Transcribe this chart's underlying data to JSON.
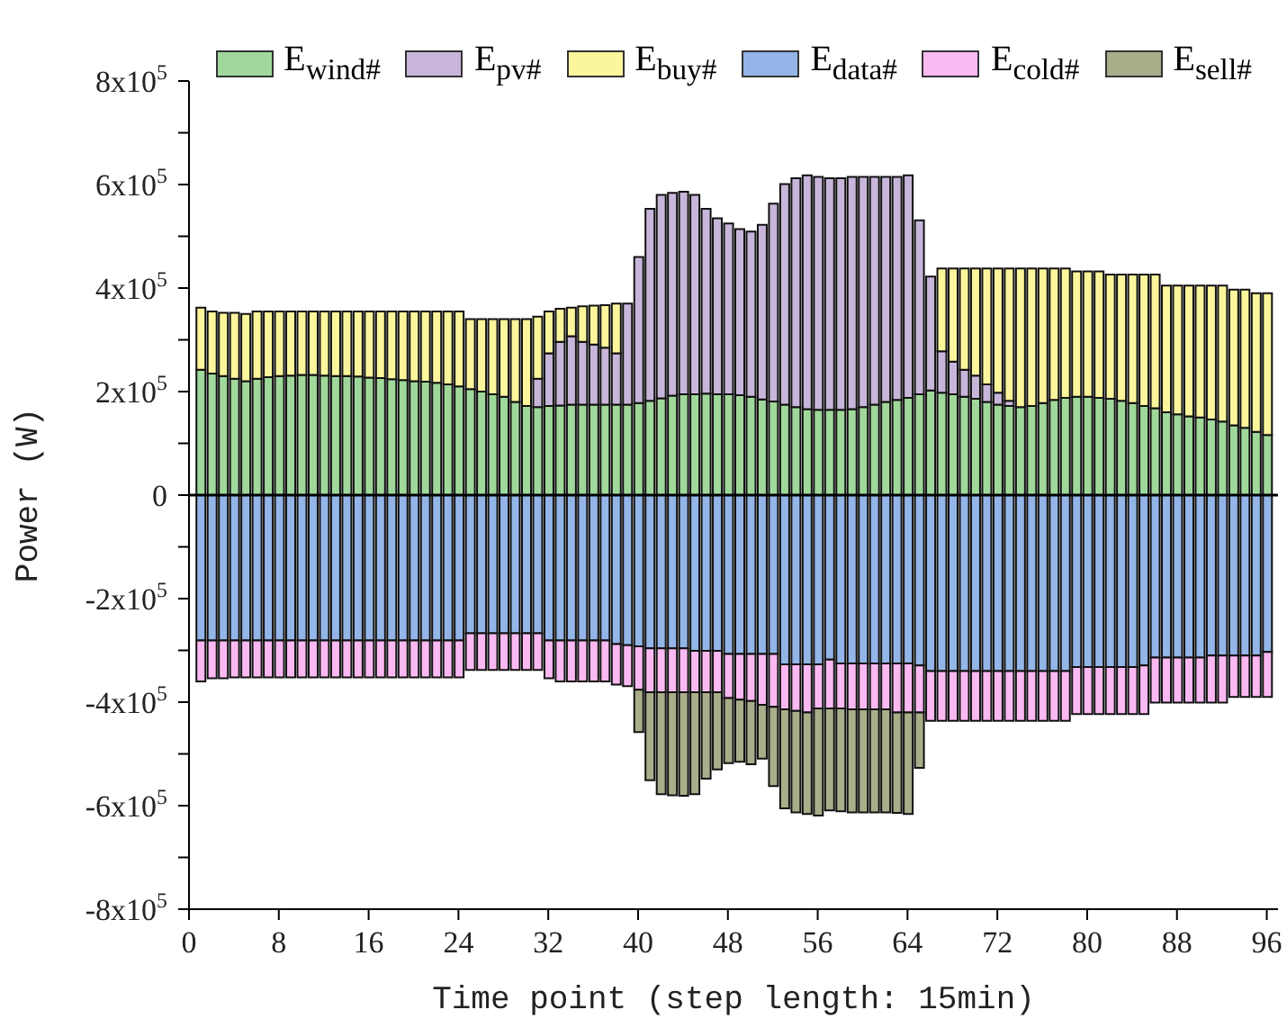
{
  "chart_data": {
    "type": "bar",
    "stacked": true,
    "xlabel": "Time point (step length: 15min)",
    "ylabel": "Power (W)",
    "x": [
      1,
      2,
      3,
      4,
      5,
      6,
      7,
      8,
      9,
      10,
      11,
      12,
      13,
      14,
      15,
      16,
      17,
      18,
      19,
      20,
      21,
      22,
      23,
      24,
      25,
      26,
      27,
      28,
      29,
      30,
      31,
      32,
      33,
      34,
      35,
      36,
      37,
      38,
      39,
      40,
      41,
      42,
      43,
      44,
      45,
      46,
      47,
      48,
      49,
      50,
      51,
      52,
      53,
      54,
      55,
      56,
      57,
      58,
      59,
      60,
      61,
      62,
      63,
      64,
      65,
      66,
      67,
      68,
      69,
      70,
      71,
      72,
      73,
      74,
      75,
      76,
      77,
      78,
      79,
      80,
      81,
      82,
      83,
      84,
      85,
      86,
      87,
      88,
      89,
      90,
      91,
      92,
      93,
      94,
      95,
      96
    ],
    "xlim": [
      0,
      97
    ],
    "xticks": [
      0,
      8,
      16,
      24,
      32,
      40,
      48,
      56,
      64,
      72,
      80,
      88,
      96
    ],
    "ylim": [
      -800000,
      800000
    ],
    "yticks": [
      {
        "value": -800000,
        "label": "-8x10$^{5}$"
      },
      {
        "value": -700000,
        "label": null
      },
      {
        "value": -600000,
        "label": "-6x10$^{5}$"
      },
      {
        "value": -500000,
        "label": null
      },
      {
        "value": -400000,
        "label": "-4x10$^{5}$"
      },
      {
        "value": -300000,
        "label": null
      },
      {
        "value": -200000,
        "label": "-2x10$^{5}$"
      },
      {
        "value": -100000,
        "label": null
      },
      0,
      {
        "value": 100000,
        "label": null
      },
      {
        "value": 200000,
        "label": "2x10$^{5}$"
      },
      {
        "value": 300000,
        "label": null
      },
      {
        "value": 400000,
        "label": "4x10$^{5}$"
      },
      {
        "value": 500000,
        "label": null
      },
      {
        "value": 600000,
        "label": "6x10$^{5}$"
      },
      {
        "value": 700000,
        "label": null
      },
      {
        "value": 800000,
        "label": "8x10$^{5}$"
      }
    ],
    "legend": "top",
    "ref_lines": [
      {
        "axis": "y",
        "value": 0,
        "color": "#000000"
      }
    ],
    "series": [
      {
        "name": "E$_{wind#}$",
        "color": "#a0d89b",
        "values": [
          242000,
          235000,
          230000,
          225000,
          220000,
          225000,
          228000,
          230000,
          231000,
          232000,
          232000,
          231000,
          230000,
          230000,
          229000,
          227000,
          226000,
          224000,
          222000,
          220000,
          219000,
          217000,
          214000,
          210000,
          205000,
          200000,
          195000,
          190000,
          180000,
          172000,
          170000,
          172000,
          173000,
          175000,
          175000,
          175000,
          175000,
          175000,
          175000,
          178000,
          182000,
          187000,
          192000,
          195000,
          195000,
          196000,
          195000,
          195000,
          193000,
          190000,
          185000,
          181000,
          175000,
          170000,
          166000,
          165000,
          165000,
          165000,
          166000,
          170000,
          175000,
          180000,
          184000,
          188000,
          195000,
          202000,
          198000,
          195000,
          190000,
          186000,
          180000,
          175000,
          172000,
          170000,
          172000,
          178000,
          184000,
          188000,
          190000,
          190000,
          188000,
          186000,
          182000,
          178000,
          172000,
          168000,
          160000,
          156000,
          152000,
          150000,
          146000,
          142000,
          135000,
          130000,
          122000,
          116000
        ]
      },
      {
        "name": "E$_{pv#}$",
        "color": "#c8b6da",
        "values": [
          null,
          null,
          null,
          null,
          null,
          null,
          null,
          null,
          null,
          null,
          null,
          null,
          null,
          null,
          null,
          null,
          null,
          null,
          null,
          null,
          null,
          null,
          null,
          null,
          null,
          null,
          null,
          null,
          null,
          null,
          55000,
          102000,
          123000,
          132000,
          121000,
          116000,
          110000,
          99000,
          195000,
          282000,
          371000,
          393000,
          392000,
          391000,
          385000,
          357000,
          340000,
          330000,
          321000,
          319000,
          337000,
          382000,
          426000,
          442000,
          452000,
          450000,
          447000,
          447000,
          449000,
          445000,
          440000,
          435000,
          431000,
          430000,
          336000,
          220000,
          80000,
          63000,
          52000,
          45000,
          34000,
          23000,
          10000,
          null,
          null,
          null,
          null,
          null,
          null,
          null,
          null,
          null,
          null,
          null,
          null,
          null,
          null,
          null,
          null,
          null,
          null,
          null,
          null,
          null,
          null,
          null
        ]
      },
      {
        "name": "E$_{buy#}$",
        "color": "#fbf59c",
        "values": [
          120000,
          120000,
          122000,
          127000,
          130000,
          130000,
          127000,
          125000,
          124000,
          123000,
          123000,
          124000,
          125000,
          125000,
          126000,
          128000,
          129000,
          131000,
          133000,
          135000,
          136000,
          138000,
          141000,
          145000,
          135000,
          140000,
          145000,
          150000,
          160000,
          168000,
          120000,
          81000,
          64000,
          55000,
          69000,
          75000,
          82000,
          96000,
          null,
          null,
          null,
          null,
          null,
          null,
          null,
          null,
          null,
          null,
          null,
          null,
          null,
          null,
          null,
          null,
          null,
          null,
          null,
          null,
          null,
          null,
          null,
          null,
          null,
          null,
          null,
          null,
          160000,
          180000,
          196000,
          207000,
          224000,
          240000,
          256000,
          268000,
          266000,
          260000,
          254000,
          250000,
          242000,
          242000,
          244000,
          240000,
          244000,
          248000,
          254000,
          258000,
          245000,
          249000,
          253000,
          255000,
          259000,
          263000,
          262000,
          267000,
          268000,
          274000
        ]
      },
      {
        "name": "E$_{data#}$",
        "color": "#93b5e8",
        "values": [
          -281000,
          -281000,
          -281000,
          -281000,
          -281000,
          -281000,
          -281000,
          -281000,
          -281000,
          -281000,
          -281000,
          -281000,
          -281000,
          -281000,
          -281000,
          -281000,
          -281000,
          -281000,
          -281000,
          -281000,
          -281000,
          -281000,
          -281000,
          -281000,
          -267000,
          -267000,
          -267000,
          -267000,
          -267000,
          -267000,
          -267000,
          -281000,
          -281000,
          -281000,
          -281000,
          -281000,
          -281000,
          -288000,
          -290000,
          -292000,
          -296000,
          -296000,
          -296000,
          -296000,
          -301000,
          -301000,
          -301000,
          -307000,
          -307000,
          -307000,
          -307000,
          -307000,
          -327000,
          -327000,
          -327000,
          -327000,
          -318000,
          -325000,
          -325000,
          -325000,
          -325000,
          -325000,
          -325000,
          -325000,
          -329000,
          -340000,
          -340000,
          -340000,
          -340000,
          -340000,
          -340000,
          -340000,
          -340000,
          -340000,
          -340000,
          -340000,
          -340000,
          -340000,
          -332000,
          -332000,
          -332000,
          -332000,
          -332000,
          -332000,
          -329000,
          -314000,
          -314000,
          -314000,
          -314000,
          -314000,
          -310000,
          -310000,
          -310000,
          -310000,
          -310000,
          -303000
        ]
      },
      {
        "name": "E$_{cold#}$",
        "color": "#fbb9f2",
        "values": [
          -79000,
          -73000,
          -73000,
          -71000,
          -71000,
          -71000,
          -71000,
          -71000,
          -71000,
          -71000,
          -71000,
          -71000,
          -71000,
          -71000,
          -71000,
          -71000,
          -71000,
          -71000,
          -71000,
          -71000,
          -71000,
          -71000,
          -71000,
          -71000,
          -71000,
          -71000,
          -71000,
          -71000,
          -71000,
          -71000,
          -71000,
          -73000,
          -79000,
          -79000,
          -79000,
          -79000,
          -79000,
          -78000,
          -79000,
          -84000,
          -85000,
          -85000,
          -85000,
          -85000,
          -80000,
          -80000,
          -80000,
          -85000,
          -88000,
          -91000,
          -98000,
          -102000,
          -87000,
          -90000,
          -93000,
          -85000,
          -94000,
          -87000,
          -89000,
          -89000,
          -89000,
          -89000,
          -95000,
          -95000,
          -91000,
          -96000,
          -96000,
          -96000,
          -96000,
          -96000,
          -96000,
          -96000,
          -96000,
          -96000,
          -96000,
          -96000,
          -96000,
          -96000,
          -91000,
          -91000,
          -91000,
          -91000,
          -91000,
          -91000,
          -94000,
          -87000,
          -87000,
          -87000,
          -87000,
          -87000,
          -91000,
          -91000,
          -80000,
          -80000,
          -80000,
          -87000
        ]
      },
      {
        "name": "E$_{sell#}$",
        "color": "#a9ad8a",
        "values": [
          null,
          null,
          null,
          null,
          null,
          null,
          null,
          null,
          null,
          null,
          null,
          null,
          null,
          null,
          null,
          null,
          null,
          null,
          null,
          null,
          null,
          null,
          null,
          null,
          null,
          null,
          null,
          null,
          null,
          null,
          null,
          null,
          null,
          null,
          null,
          null,
          null,
          null,
          null,
          -82000,
          -170000,
          -197000,
          -199000,
          -200000,
          -197000,
          -167000,
          -149000,
          -126000,
          -120000,
          -122000,
          -104000,
          -153000,
          -191000,
          -196000,
          -196000,
          -207000,
          -197000,
          -199000,
          -199000,
          -199000,
          -199000,
          -199000,
          -194000,
          -196000,
          -107000,
          null,
          null,
          null,
          null,
          null,
          null,
          null,
          null,
          null,
          null,
          null,
          null,
          null,
          null,
          null,
          null,
          null,
          null,
          null,
          null,
          null,
          null,
          null,
          null,
          null,
          null,
          null,
          null,
          null,
          null,
          null
        ]
      }
    ]
  }
}
